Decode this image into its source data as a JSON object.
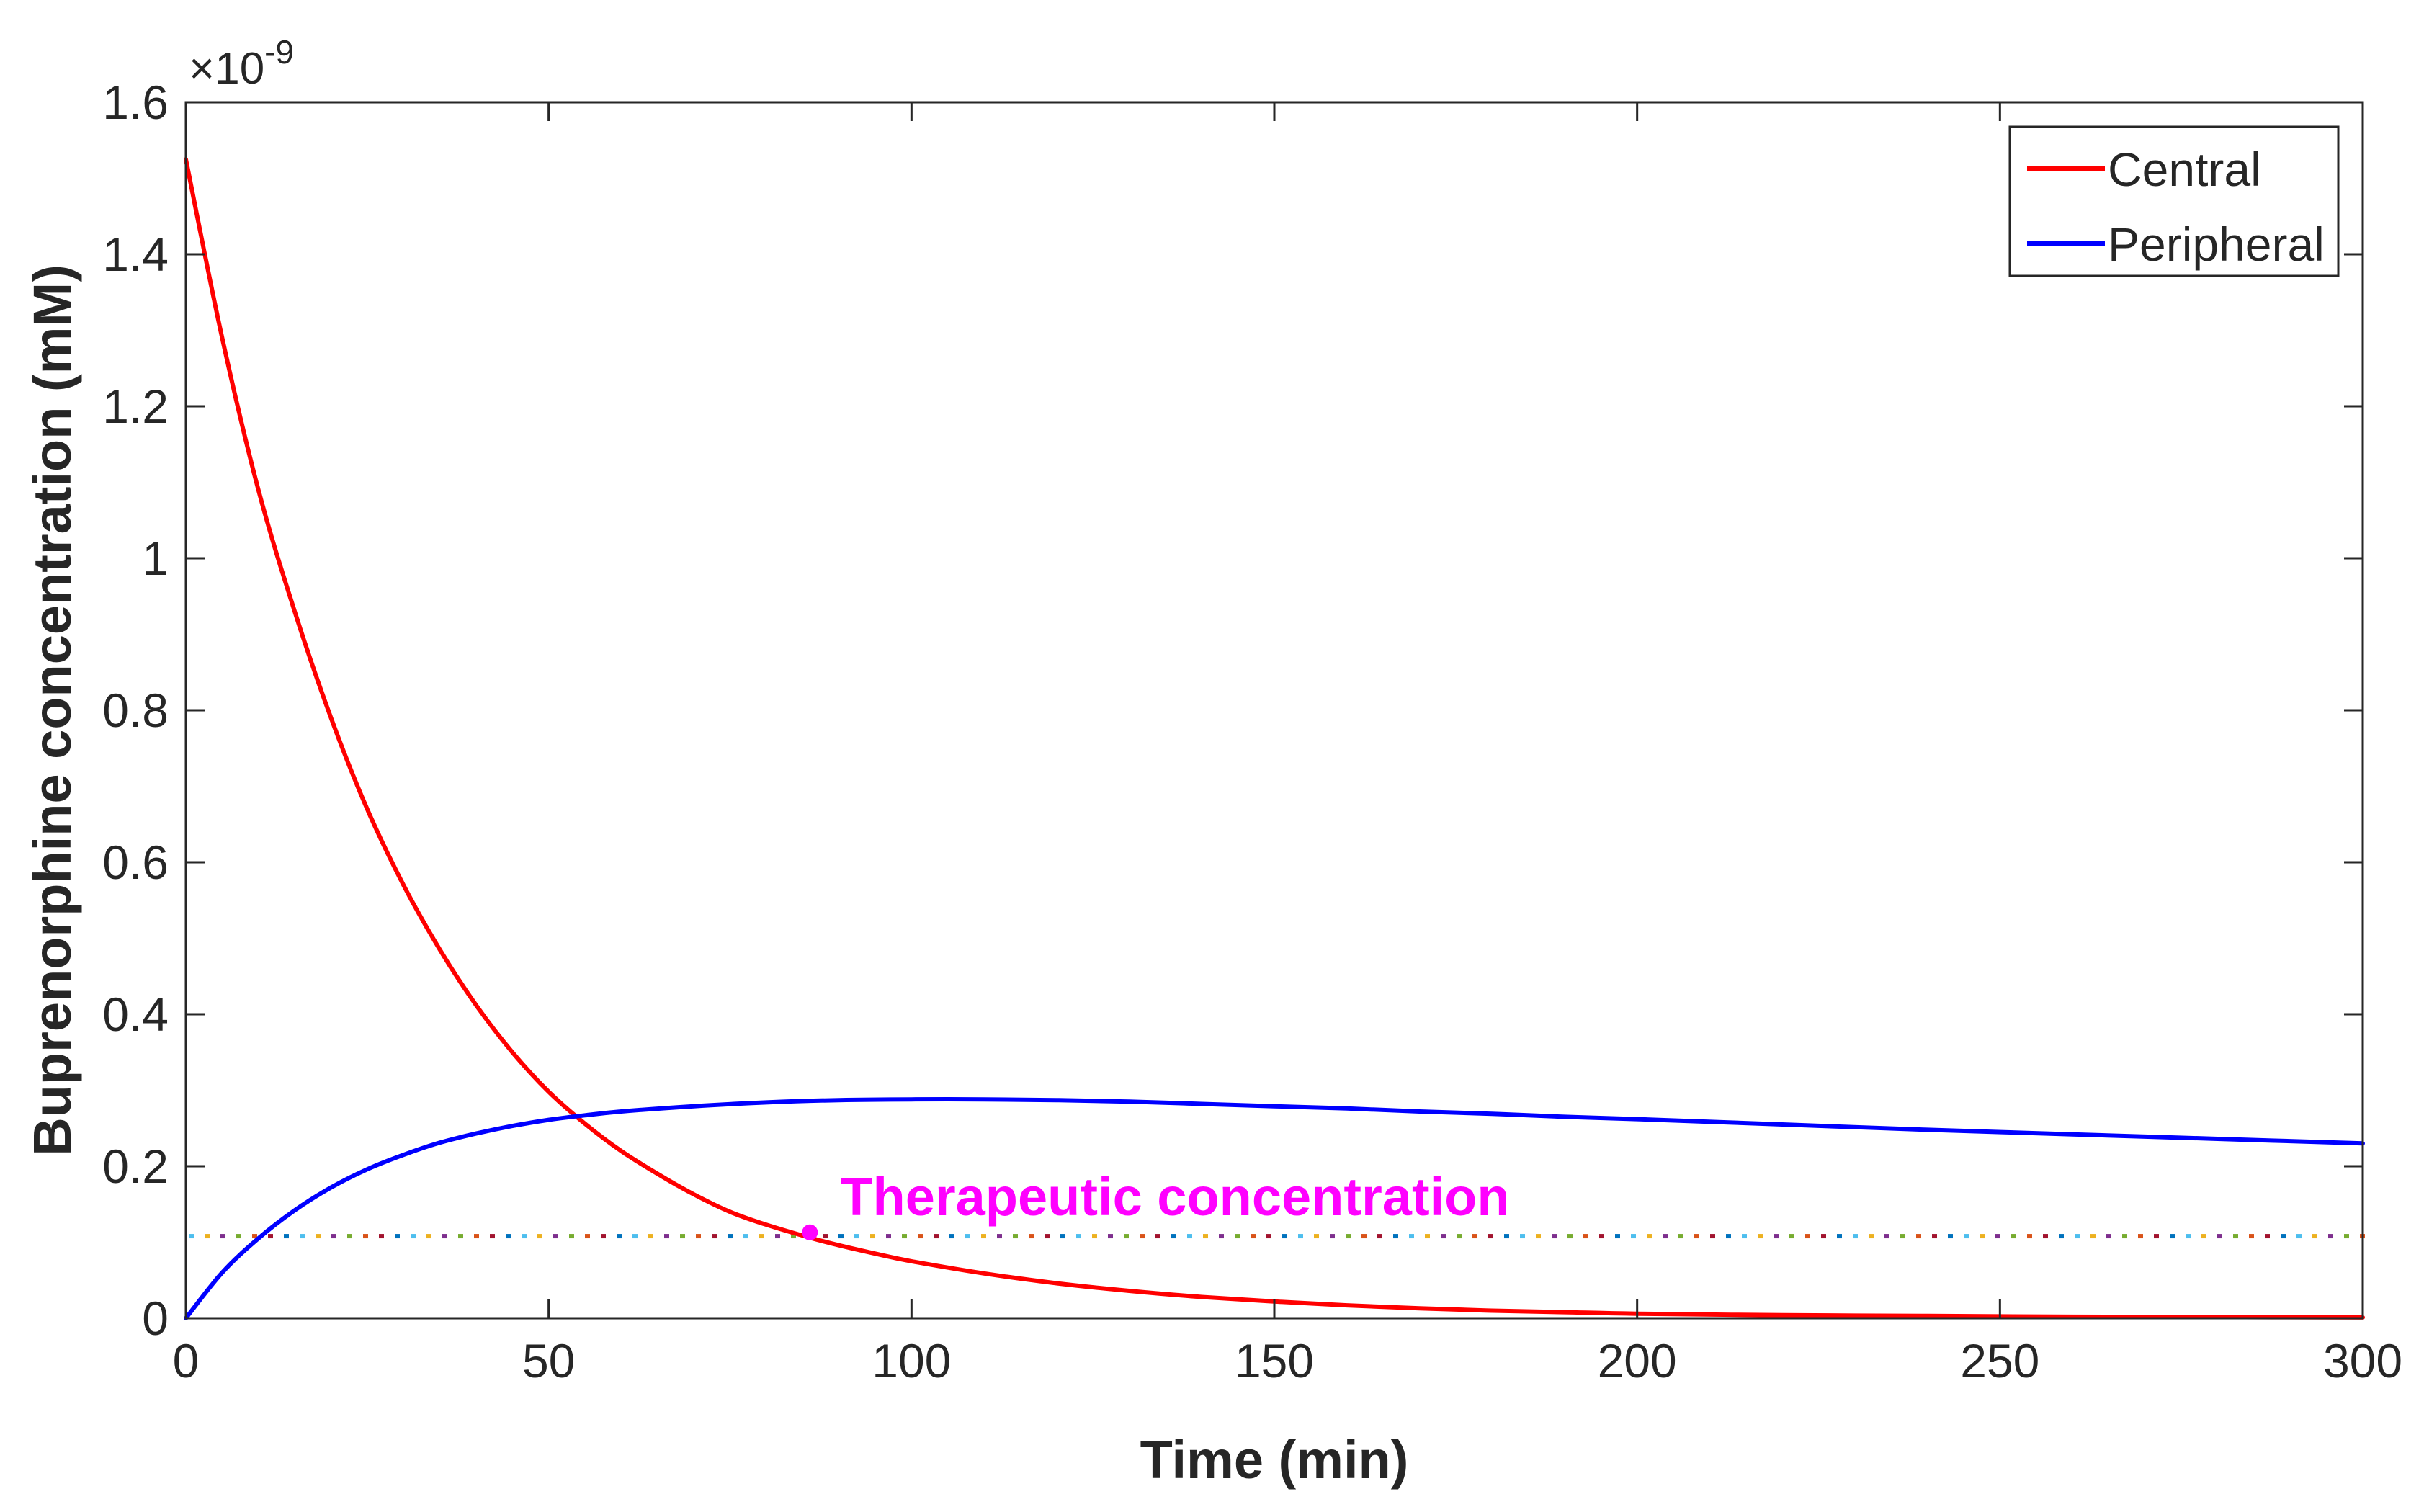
{
  "chart_data": {
    "type": "line",
    "title": "",
    "xlabel": "Time (min)",
    "ylabel": "Buprenorphine concentration (mM)",
    "exponent_label": {
      "base": "×10",
      "power": "-9"
    },
    "xlim": [
      0,
      300
    ],
    "ylim": [
      0,
      1.6
    ],
    "x_ticks": [
      0,
      50,
      100,
      150,
      200,
      250,
      300
    ],
    "x_tick_labels": [
      "0",
      "50",
      "100",
      "150",
      "200",
      "250",
      "300"
    ],
    "y_ticks": [
      0,
      0.2,
      0.4,
      0.6,
      0.8,
      1.0,
      1.2,
      1.4,
      1.6
    ],
    "y_tick_labels": [
      "0",
      "0.2",
      "0.4",
      "0.6",
      "0.8",
      "1",
      "1.2",
      "1.4",
      "1.6"
    ],
    "grid": false,
    "legend_position": "top-right",
    "series": [
      {
        "name": "Central",
        "color": "#ff0000",
        "x": [
          0,
          5,
          10,
          15,
          20,
          25,
          30,
          35,
          40,
          45,
          50,
          55,
          60,
          65,
          70,
          75,
          80,
          86,
          90,
          95,
          100,
          110,
          120,
          130,
          140,
          150,
          160,
          170,
          180,
          190,
          200,
          220,
          240,
          260,
          280,
          300
        ],
        "y": [
          1.525,
          1.29,
          1.09,
          0.93,
          0.79,
          0.67,
          0.57,
          0.485,
          0.412,
          0.35,
          0.298,
          0.256,
          0.22,
          0.19,
          0.163,
          0.14,
          0.123,
          0.106,
          0.096,
          0.085,
          0.075,
          0.059,
          0.046,
          0.036,
          0.028,
          0.022,
          0.017,
          0.013,
          0.01,
          0.008,
          0.006,
          0.004,
          0.003,
          0.002,
          0.0015,
          0.001
        ]
      },
      {
        "name": "Peripheral",
        "color": "#0000ff",
        "x": [
          0,
          5,
          10,
          15,
          20,
          25,
          30,
          35,
          40,
          45,
          50,
          55,
          60,
          70,
          80,
          90,
          100,
          110,
          120,
          130,
          140,
          150,
          160,
          170,
          180,
          190,
          200,
          220,
          240,
          260,
          280,
          300
        ],
        "y": [
          0,
          0.06,
          0.105,
          0.142,
          0.172,
          0.196,
          0.215,
          0.231,
          0.243,
          0.253,
          0.261,
          0.267,
          0.272,
          0.279,
          0.284,
          0.287,
          0.288,
          0.288,
          0.287,
          0.285,
          0.282,
          0.279,
          0.276,
          0.272,
          0.269,
          0.265,
          0.262,
          0.255,
          0.248,
          0.242,
          0.236,
          0.23
        ]
      }
    ],
    "reference_line": {
      "y": 0.108,
      "style": "dotted",
      "colors": [
        "#4dbeee",
        "#edb120",
        "#7e2f8e",
        "#77ac30",
        "#d95319",
        "#a2142f",
        "#0072bd"
      ]
    },
    "annotation": {
      "text": "Therapeutic concentration",
      "x": 86,
      "y": 0.113,
      "color": "#ff00ff"
    }
  }
}
